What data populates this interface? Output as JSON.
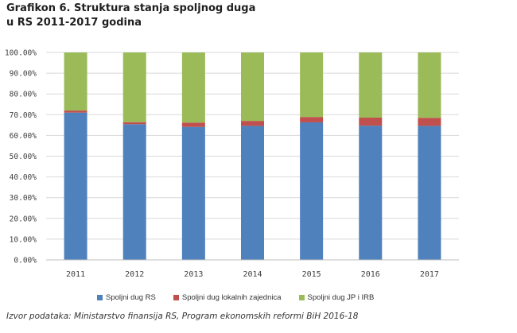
{
  "chart_data": {
    "type": "bar",
    "stacked": true,
    "title_lines": [
      "Grafikon 6. Struktura stanja spoljnog duga",
      "u RS 2011-2017 godina"
    ],
    "categories": [
      "2011",
      "2012",
      "2013",
      "2014",
      "2015",
      "2016",
      "2017"
    ],
    "series": [
      {
        "name": "Spoljni dug RS",
        "color": "#4f81bd",
        "values": [
          71.0,
          65.4,
          64.1,
          64.6,
          66.3,
          64.7,
          64.6
        ]
      },
      {
        "name": "Spoljni dug lokalnih zajednica",
        "color": "#c0504d",
        "values": [
          1.0,
          1.0,
          2.1,
          2.4,
          2.6,
          3.9,
          3.9
        ]
      },
      {
        "name": "Spoljni dug JP i IRB",
        "color": "#9bbb59",
        "values": [
          28.0,
          33.6,
          33.8,
          33.0,
          31.1,
          31.4,
          31.5
        ]
      }
    ],
    "yticks": [
      "0.00%",
      "10.00%",
      "20.00%",
      "30.00%",
      "40.00%",
      "50.00%",
      "60.00%",
      "70.00%",
      "80.00%",
      "90.00%",
      "100.00%"
    ],
    "ylim": [
      0,
      100
    ],
    "grid": true,
    "legend_position": "bottom"
  },
  "source": "Izvor podataka: Ministarstvo finansija RS, Program ekonomskih reformi BiH 2016-18"
}
